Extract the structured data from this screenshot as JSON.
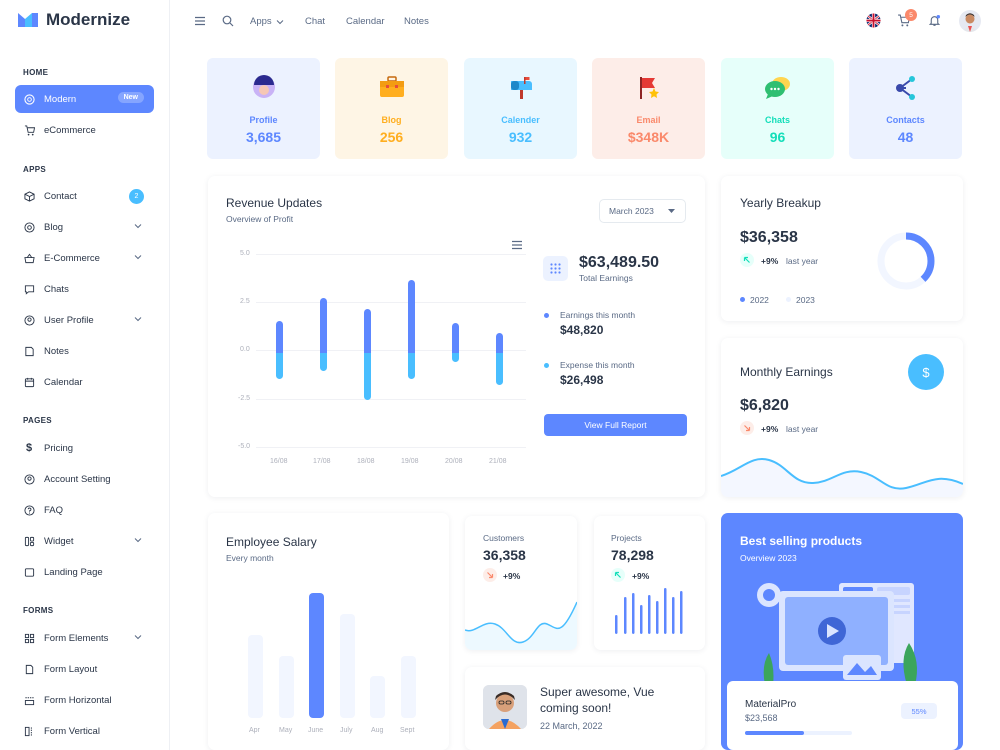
{
  "brand": {
    "name": "Modernize",
    "accent": "#5d87ff"
  },
  "sidebar": {
    "sections": [
      {
        "title": "HOME"
      },
      {
        "title": "APPS"
      },
      {
        "title": "PAGES"
      },
      {
        "title": "FORMS"
      }
    ],
    "items": [
      {
        "label": "Modern",
        "icon": "aperture-icon",
        "badge": "New",
        "active": true
      },
      {
        "label": "eCommerce",
        "icon": "cart-icon"
      },
      {
        "label": "Contact",
        "icon": "box-icon",
        "count": "2"
      },
      {
        "label": "Blog",
        "icon": "chart-donut-icon",
        "chevron": true
      },
      {
        "label": "E-Commerce",
        "icon": "basket-icon",
        "chevron": true
      },
      {
        "label": "Chats",
        "icon": "message-icon"
      },
      {
        "label": "User Profile",
        "icon": "user-circle-icon",
        "chevron": true
      },
      {
        "label": "Notes",
        "icon": "notes-icon"
      },
      {
        "label": "Calendar",
        "icon": "calendar-icon"
      },
      {
        "label": "Pricing",
        "icon": "currency-dollar-icon"
      },
      {
        "label": "Account Setting",
        "icon": "user-circle-icon"
      },
      {
        "label": "FAQ",
        "icon": "help-icon"
      },
      {
        "label": "Widget",
        "icon": "layout-icon",
        "chevron": true
      },
      {
        "label": "Landing Page",
        "icon": "app-window-icon"
      },
      {
        "label": "Form Elements",
        "icon": "apps-icon",
        "chevron": true
      },
      {
        "label": "Form Layout",
        "icon": "file-description-icon"
      },
      {
        "label": "Form Horizontal",
        "icon": "box-align-bottom-icon"
      },
      {
        "label": "Form Vertical",
        "icon": "box-align-left-icon"
      }
    ]
  },
  "topbar": {
    "links": [
      "Apps",
      "Chat",
      "Calendar",
      "Notes"
    ],
    "cart_count": "5"
  },
  "stats": [
    {
      "label": "Profile",
      "value": "3,685",
      "bg": "#ecf2ff",
      "color": "#5d87ff",
      "icon": "profile-icon"
    },
    {
      "label": "Blog",
      "value": "256",
      "bg": "#fef5e5",
      "color": "#ffae1f",
      "icon": "briefcase-icon"
    },
    {
      "label": "Calender",
      "value": "932",
      "bg": "#e8f7ff",
      "color": "#49beff",
      "icon": "mailbox-icon"
    },
    {
      "label": "Email",
      "value": "$348K",
      "bg": "#fdede8",
      "color": "#fa896b",
      "icon": "flag-icon"
    },
    {
      "label": "Chats",
      "value": "96",
      "bg": "#e6fffa",
      "color": "#13deb9",
      "icon": "chat-bubbles-icon"
    },
    {
      "label": "Contacts",
      "value": "48",
      "bg": "#ecf2ff",
      "color": "#5d87ff",
      "icon": "connection-icon"
    }
  ],
  "revenue": {
    "title": "Revenue Updates",
    "subtitle": "Overview of Profit",
    "month": "March 2023",
    "total": "$63,489.50",
    "total_label": "Total Earnings",
    "earnings_label": "Earnings this month",
    "earnings_value": "$48,820",
    "expense_label": "Expense this month",
    "expense_value": "$26,498",
    "button": "View Full Report"
  },
  "chart_data": [
    {
      "type": "bar",
      "categories": [
        "16/08",
        "17/08",
        "18/08",
        "19/08",
        "20/08",
        "21/08"
      ],
      "yticks": [
        "5.0",
        "2.5",
        "0.0",
        "-2.5",
        "-5.0"
      ],
      "ylim": [
        -5,
        5
      ],
      "series": [
        {
          "values": [
            1.5,
            2.7,
            2.1,
            3.6,
            1.4,
            0.9
          ]
        },
        {
          "values": [
            -1.5,
            -1.1,
            -2.6,
            -1.5,
            -0.6,
            -1.8
          ]
        }
      ],
      "colors": [
        "#5d87ff",
        "#49beff"
      ],
      "grid": true
    },
    {
      "type": "bar",
      "categories": [
        "Apr",
        "May",
        "June",
        "July",
        "Aug",
        "Sept"
      ],
      "values": [
        20,
        15,
        30,
        25,
        10,
        15
      ],
      "highlight_index": 2,
      "colors": [
        "#f2f6ff",
        "#5d87ff"
      ]
    }
  ],
  "yearly": {
    "title": "Yearly Breakup",
    "value": "$36,358",
    "pct": "+9%",
    "period": "last year",
    "legend": [
      "2022",
      "2023"
    ],
    "share": 0.38
  },
  "monthly": {
    "title": "Monthly Earnings",
    "value": "$6,820",
    "pct": "+9%",
    "period": "last year"
  },
  "salary": {
    "title": "Employee Salary",
    "subtitle": "Every month"
  },
  "customers": {
    "title": "Customers",
    "value": "36,358",
    "pct": "+9%"
  },
  "projects": {
    "title": "Projects",
    "value": "78,298",
    "pct": "+9%"
  },
  "event": {
    "title": "Super awesome, Vue coming soon!",
    "date": "22 March, 2022"
  },
  "bestselling": {
    "title": "Best selling products",
    "subtitle": "Overview 2023",
    "product": "MaterialPro",
    "price": "$23,568",
    "progress": "55%"
  }
}
